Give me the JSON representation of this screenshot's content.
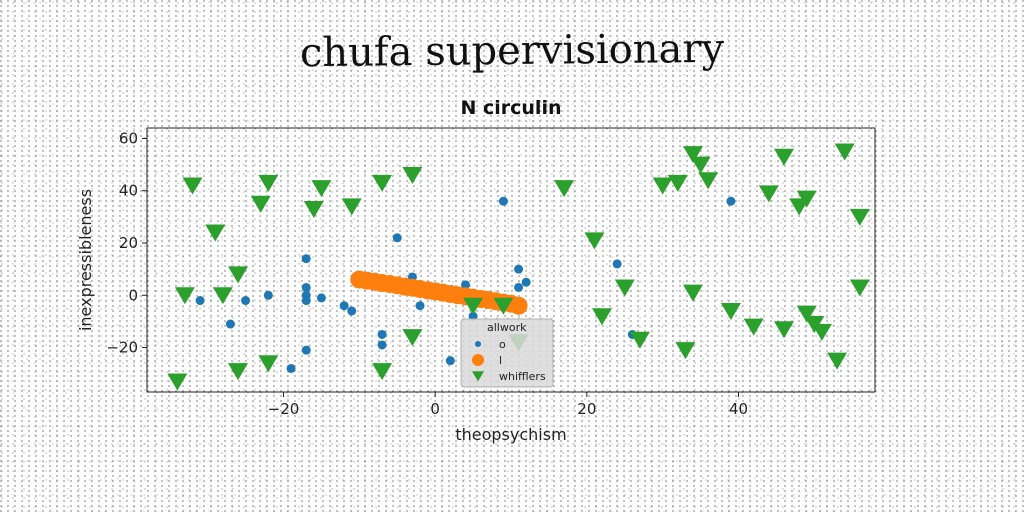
{
  "suptitle": "chufa supervisionary",
  "chart_data": {
    "type": "scatter",
    "title": "N circulin",
    "xlabel": "theopsychism",
    "ylabel": "inexpressibleness",
    "xlim": [
      -38,
      58
    ],
    "ylim": [
      -37,
      64
    ],
    "xticks": [
      -20,
      0,
      20,
      40
    ],
    "yticks": [
      -20,
      0,
      20,
      40,
      60
    ],
    "grid": false,
    "legend": {
      "title": "allwork",
      "position": "lower-center",
      "entries": [
        "o",
        "l",
        "whifflers"
      ]
    },
    "series": [
      {
        "name": "o",
        "marker": "circle",
        "color": "#1f77b4",
        "points": [
          [
            -31,
            -2
          ],
          [
            -27,
            -11
          ],
          [
            -25,
            -2
          ],
          [
            -22,
            0
          ],
          [
            -19,
            -28
          ],
          [
            -17,
            14
          ],
          [
            -17,
            3
          ],
          [
            -17,
            0
          ],
          [
            -17,
            -2
          ],
          [
            -17,
            -21
          ],
          [
            -15,
            -1
          ],
          [
            -12,
            -4
          ],
          [
            -11,
            -6
          ],
          [
            -7,
            -15
          ],
          [
            -7,
            -19
          ],
          [
            -5,
            22
          ],
          [
            -3,
            7
          ],
          [
            -2,
            -4
          ],
          [
            2,
            -25
          ],
          [
            4,
            4
          ],
          [
            5,
            -8
          ],
          [
            9,
            36
          ],
          [
            11,
            3
          ],
          [
            11,
            10
          ],
          [
            12,
            5
          ],
          [
            24,
            12
          ],
          [
            26,
            -15
          ],
          [
            39,
            36
          ]
        ]
      },
      {
        "name": "l",
        "marker": "circle",
        "color": "#ff7f0e",
        "points": [
          [
            -10,
            6
          ],
          [
            -9,
            5.6
          ],
          [
            -8,
            5.2
          ],
          [
            -7,
            4.7
          ],
          [
            -6,
            4.3
          ],
          [
            -5,
            3.8
          ],
          [
            -4,
            3.3
          ],
          [
            -3,
            2.9
          ],
          [
            -2,
            2.4
          ],
          [
            -1,
            1.9
          ],
          [
            0,
            1.5
          ],
          [
            1,
            1.0
          ],
          [
            2,
            0.5
          ],
          [
            3,
            0.0
          ],
          [
            4,
            -0.4
          ],
          [
            5,
            -0.9
          ],
          [
            6,
            -1.4
          ],
          [
            7,
            -1.8
          ],
          [
            8,
            -2.3
          ],
          [
            9,
            -2.8
          ],
          [
            10,
            -3.2
          ],
          [
            11,
            -4.0
          ]
        ]
      },
      {
        "name": "whifflers",
        "marker": "triangle-down",
        "color": "#2ca02c",
        "points": [
          [
            -34,
            -33
          ],
          [
            -33,
            0
          ],
          [
            -32,
            42
          ],
          [
            -29,
            24
          ],
          [
            -28,
            0
          ],
          [
            -26,
            -29
          ],
          [
            -26,
            8
          ],
          [
            -23,
            35
          ],
          [
            -22,
            43
          ],
          [
            -22,
            -26
          ],
          [
            -16,
            33
          ],
          [
            -15,
            41
          ],
          [
            -11,
            34
          ],
          [
            -7,
            -29
          ],
          [
            -7,
            43
          ],
          [
            -3,
            46
          ],
          [
            -3,
            -16
          ],
          [
            5,
            -4
          ],
          [
            9,
            -4
          ],
          [
            11,
            -18
          ],
          [
            17,
            41
          ],
          [
            21,
            21
          ],
          [
            22,
            -8
          ],
          [
            25,
            3
          ],
          [
            27,
            -17
          ],
          [
            30,
            42
          ],
          [
            32,
            43
          ],
          [
            33,
            -21
          ],
          [
            34,
            54
          ],
          [
            34,
            1
          ],
          [
            35,
            50
          ],
          [
            36,
            44
          ],
          [
            39,
            -6
          ],
          [
            42,
            -12
          ],
          [
            44,
            39
          ],
          [
            46,
            53
          ],
          [
            46,
            -13
          ],
          [
            48,
            34
          ],
          [
            49,
            -7
          ],
          [
            49,
            37
          ],
          [
            50,
            -11
          ],
          [
            51,
            -14
          ],
          [
            53,
            -25
          ],
          [
            54,
            55
          ],
          [
            56,
            30
          ],
          [
            56,
            3
          ]
        ]
      }
    ]
  }
}
